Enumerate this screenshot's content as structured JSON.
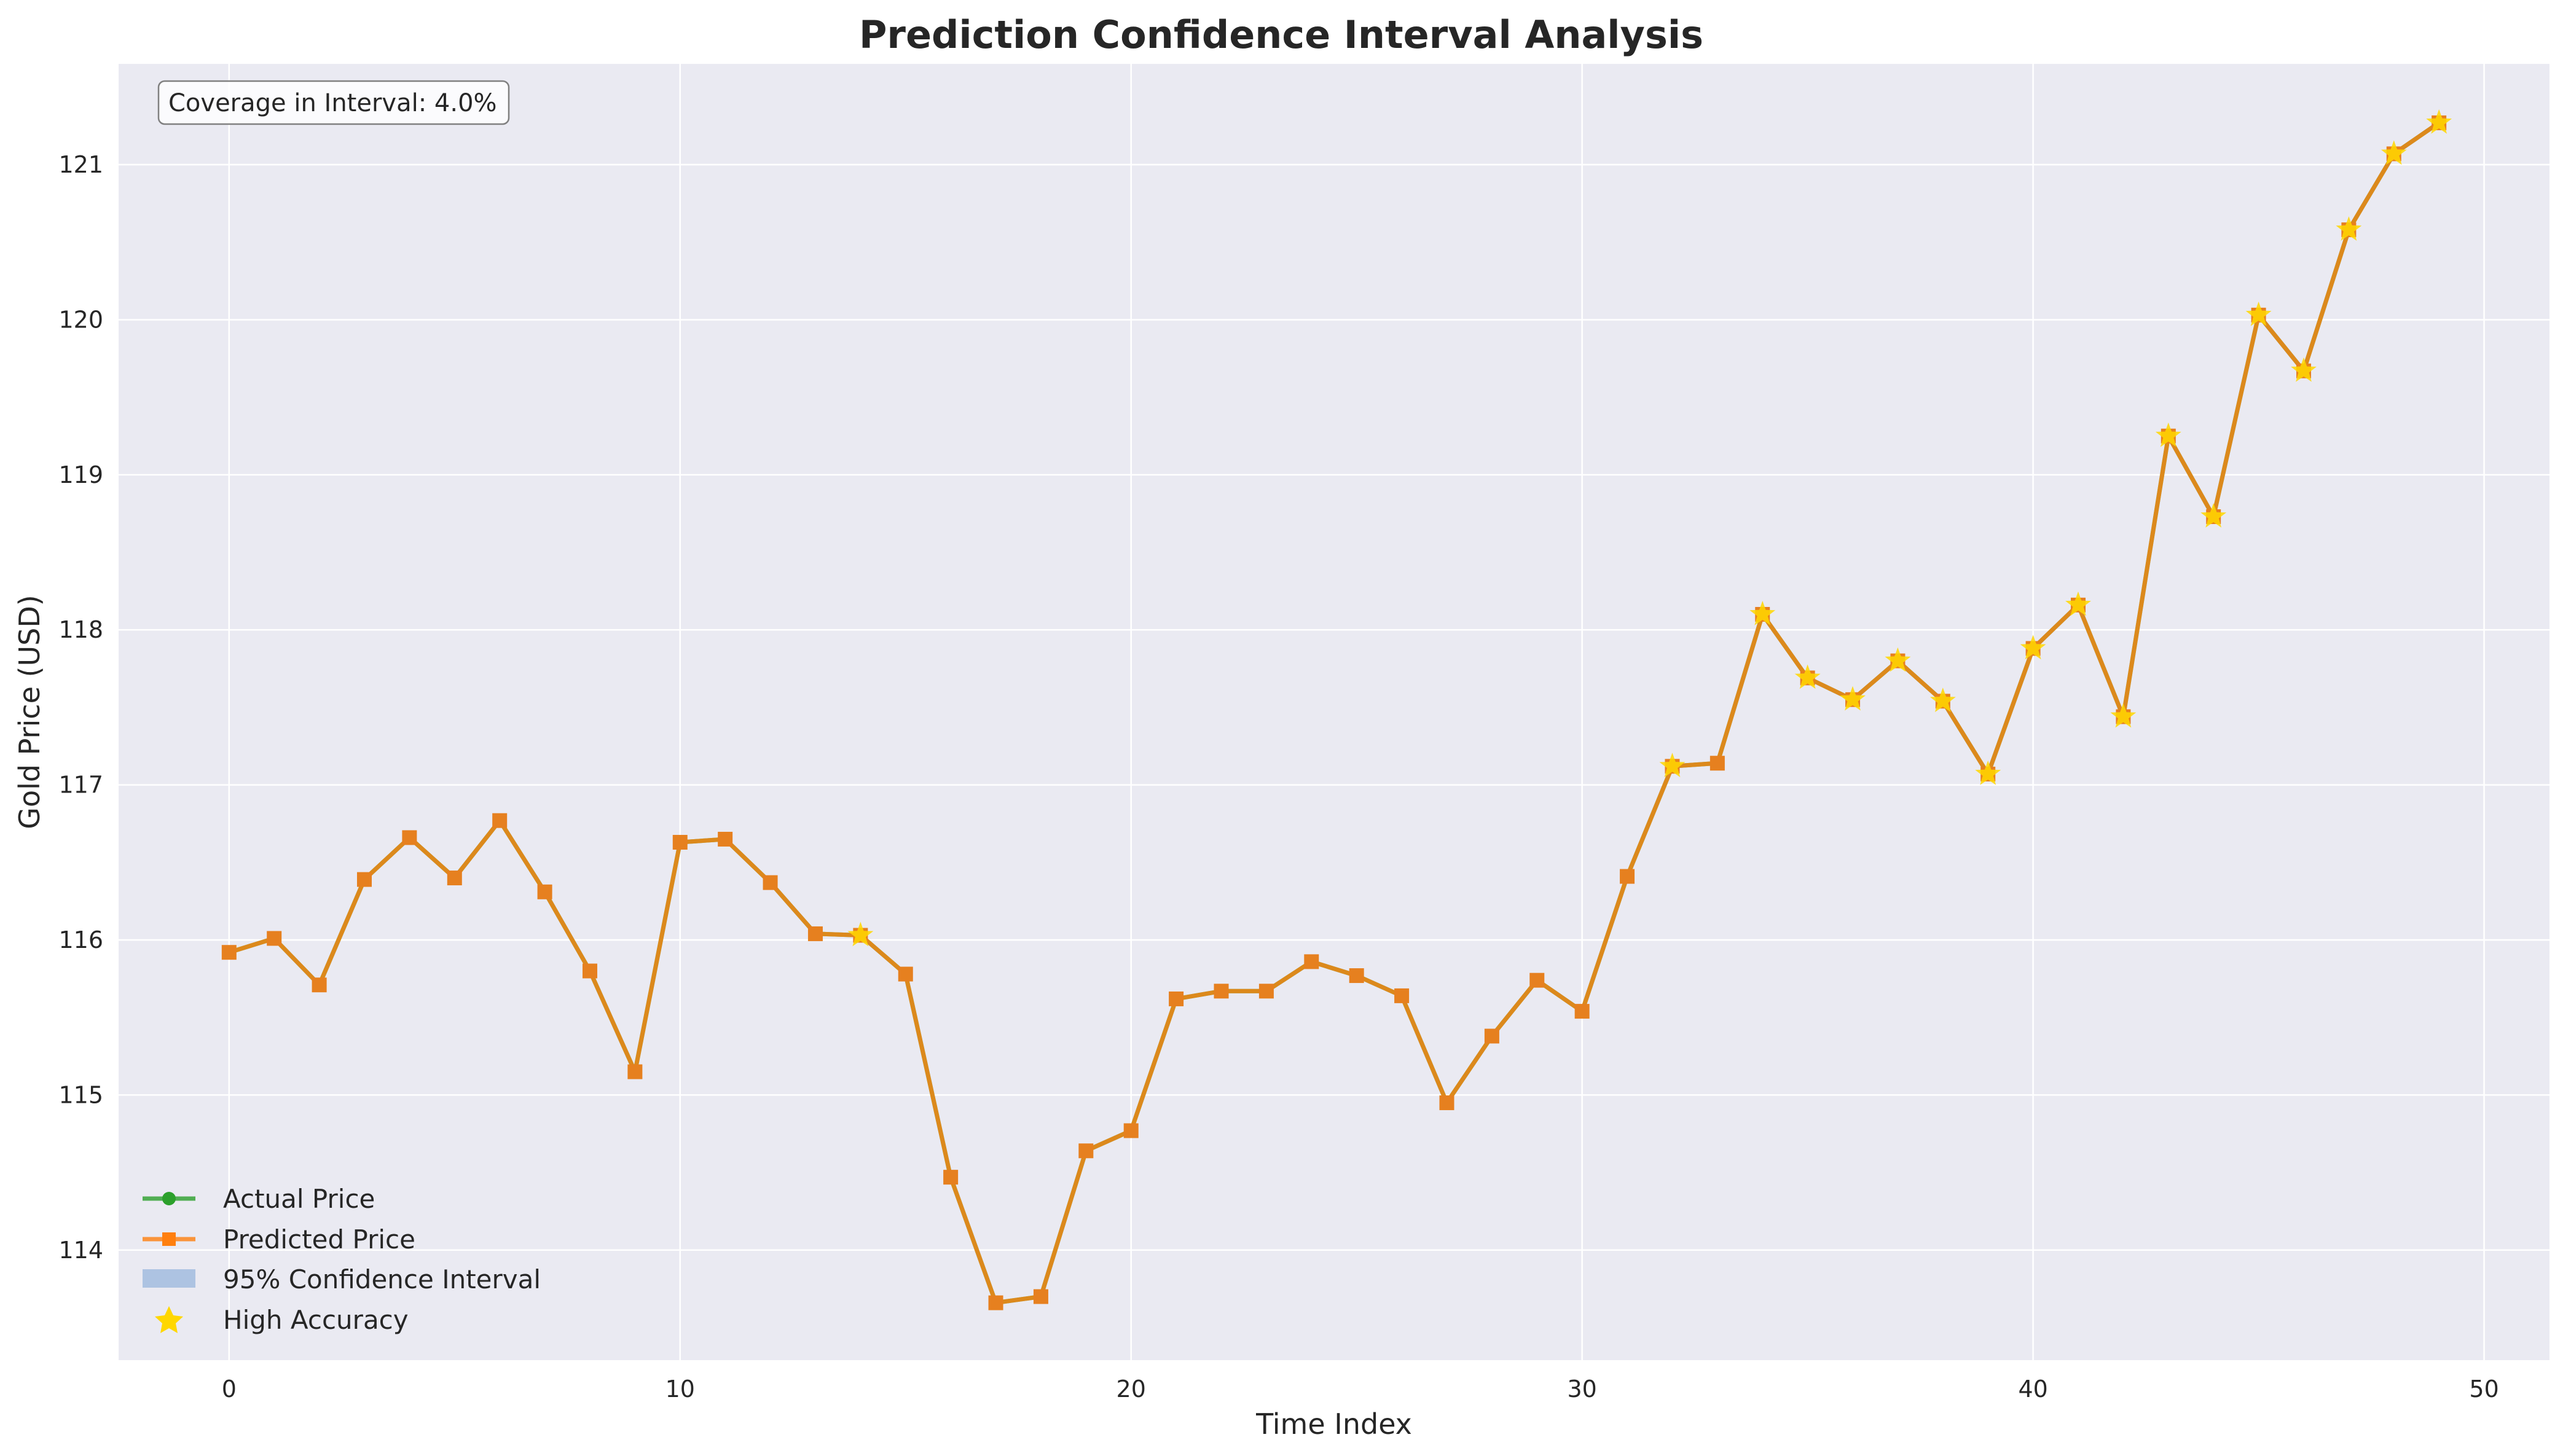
{
  "chart_data": {
    "type": "line",
    "title": "Prediction Confidence Interval Analysis",
    "xlabel": "Time Index",
    "ylabel": "Gold Price (USD)",
    "xlim": [
      -2.45,
      51.45
    ],
    "ylim": [
      113.29,
      121.65
    ],
    "x_ticks": [
      0,
      10,
      20,
      30,
      40,
      50
    ],
    "y_ticks": [
      114,
      115,
      116,
      117,
      118,
      119,
      120,
      121
    ],
    "grid": true,
    "legend_position": "lower-left",
    "annotation": "Coverage in Interval: 4.0%",
    "x": [
      0,
      1,
      2,
      3,
      4,
      5,
      6,
      7,
      8,
      9,
      10,
      11,
      12,
      13,
      14,
      15,
      16,
      17,
      18,
      19,
      20,
      21,
      22,
      23,
      24,
      25,
      26,
      27,
      28,
      29,
      30,
      31,
      32,
      33,
      34,
      35,
      36,
      37,
      38,
      39,
      40,
      41,
      42,
      43,
      44,
      45,
      46,
      47,
      48,
      49
    ],
    "series": [
      {
        "name": "Actual Price",
        "color": "#2ca02c",
        "marker": "circle",
        "values": [
          115.92,
          116.01,
          115.71,
          116.39,
          116.66,
          116.4,
          116.77,
          116.31,
          115.8,
          115.15,
          116.63,
          116.65,
          116.37,
          116.04,
          116.03,
          115.78,
          114.47,
          113.66,
          113.7,
          114.64,
          114.77,
          115.62,
          115.67,
          115.67,
          115.86,
          115.77,
          115.64,
          114.95,
          115.38,
          115.74,
          115.54,
          116.41,
          117.12,
          117.14,
          118.1,
          117.69,
          117.55,
          117.8,
          117.54,
          117.07,
          117.88,
          118.16,
          117.44,
          119.25,
          118.73,
          120.03,
          119.67,
          120.58,
          121.07,
          121.27
        ]
      },
      {
        "name": "Predicted Price",
        "color": "#ff7f0e",
        "marker": "square",
        "values": [
          115.92,
          116.01,
          115.71,
          116.39,
          116.66,
          116.4,
          116.77,
          116.31,
          115.8,
          115.15,
          116.63,
          116.65,
          116.37,
          116.04,
          116.03,
          115.78,
          114.47,
          113.66,
          113.7,
          114.64,
          114.77,
          115.62,
          115.67,
          115.67,
          115.86,
          115.77,
          115.64,
          114.95,
          115.38,
          115.74,
          115.54,
          116.41,
          117.12,
          117.14,
          118.1,
          117.69,
          117.55,
          117.8,
          117.54,
          117.07,
          117.88,
          118.16,
          117.44,
          119.25,
          118.73,
          120.03,
          119.67,
          120.58,
          121.07,
          121.27
        ]
      }
    ],
    "confidence_interval": {
      "name": "95% Confidence Interval",
      "color": "#6f9bd1"
    },
    "high_accuracy": {
      "name": "High Accuracy",
      "color": "#ffd700",
      "indices": [
        14,
        32,
        34,
        35,
        36,
        37,
        38,
        39,
        40,
        41,
        42,
        43,
        44,
        45,
        46,
        47,
        48,
        49
      ]
    }
  }
}
